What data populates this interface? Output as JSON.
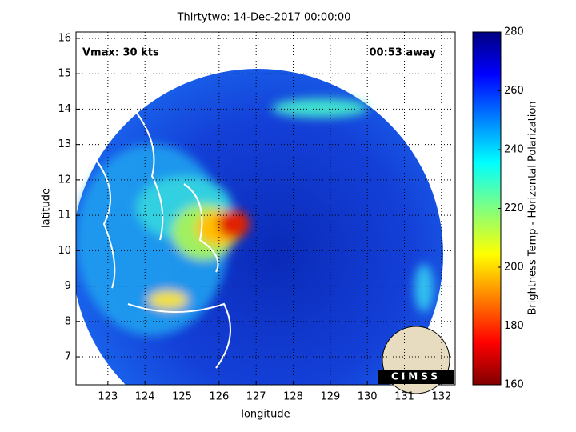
{
  "chart_data": {
    "type": "image",
    "title": "Thirtytwo: 14-Dec-2017 00:00:00",
    "xlabel": "longitude",
    "ylabel": "latitude",
    "annotations": [
      "Vmax: 30 kts",
      "00:53 away"
    ],
    "xlim": [
      122.14,
      132.37
    ],
    "xticks": [
      123,
      124,
      125,
      126,
      127,
      128,
      129,
      130,
      131,
      132
    ],
    "ylim": [
      6.21,
      16.18
    ],
    "yticks": [
      7,
      8,
      9,
      10,
      11,
      12,
      13,
      14,
      15,
      16
    ],
    "grid": true,
    "colorbar": {
      "label": "Brightness Temp - Horizontal Polarization",
      "lim": [
        160,
        280
      ],
      "ticks": [
        160,
        180,
        200,
        220,
        240,
        260,
        280
      ]
    }
  },
  "logo": "CIMSS"
}
